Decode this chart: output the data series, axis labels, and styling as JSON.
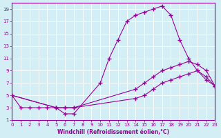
{
  "xlabel": "Windchill (Refroidissement éolien,°C)",
  "bg_color": "#d4eef5",
  "line_color": "#990099",
  "grid_color": "#ffffff",
  "xlim": [
    0,
    23
  ],
  "ylim": [
    1,
    20
  ],
  "xticks": [
    0,
    1,
    2,
    3,
    4,
    5,
    6,
    7,
    8,
    9,
    10,
    11,
    12,
    13,
    14,
    15,
    16,
    17,
    18,
    19,
    20,
    21,
    22,
    23
  ],
  "yticks": [
    1,
    3,
    5,
    7,
    9,
    11,
    13,
    15,
    17,
    19
  ],
  "line1_x": [
    0,
    1,
    2,
    3,
    4,
    5,
    6,
    7,
    10,
    11,
    12,
    13,
    14,
    15,
    16,
    17,
    18,
    19,
    20,
    21,
    22,
    23
  ],
  "line1_y": [
    5,
    3,
    3,
    3,
    3,
    3,
    2,
    2,
    7,
    11,
    14,
    17,
    18,
    18.5,
    19,
    19.5,
    18,
    14,
    11,
    9,
    8,
    6.5
  ],
  "line2_x": [
    0,
    5,
    6,
    7,
    14,
    15,
    16,
    17,
    18,
    19,
    20,
    21,
    22,
    23
  ],
  "line2_y": [
    5,
    3,
    3,
    3,
    6,
    7,
    8,
    9,
    9.5,
    10,
    10.5,
    10,
    9,
    6.5
  ],
  "line3_x": [
    0,
    5,
    6,
    7,
    14,
    15,
    16,
    17,
    18,
    19,
    20,
    21,
    22,
    23
  ],
  "line3_y": [
    5,
    3,
    3,
    3,
    4.5,
    5,
    6,
    7,
    7.5,
    8,
    8.5,
    9,
    7.5,
    6.5
  ]
}
